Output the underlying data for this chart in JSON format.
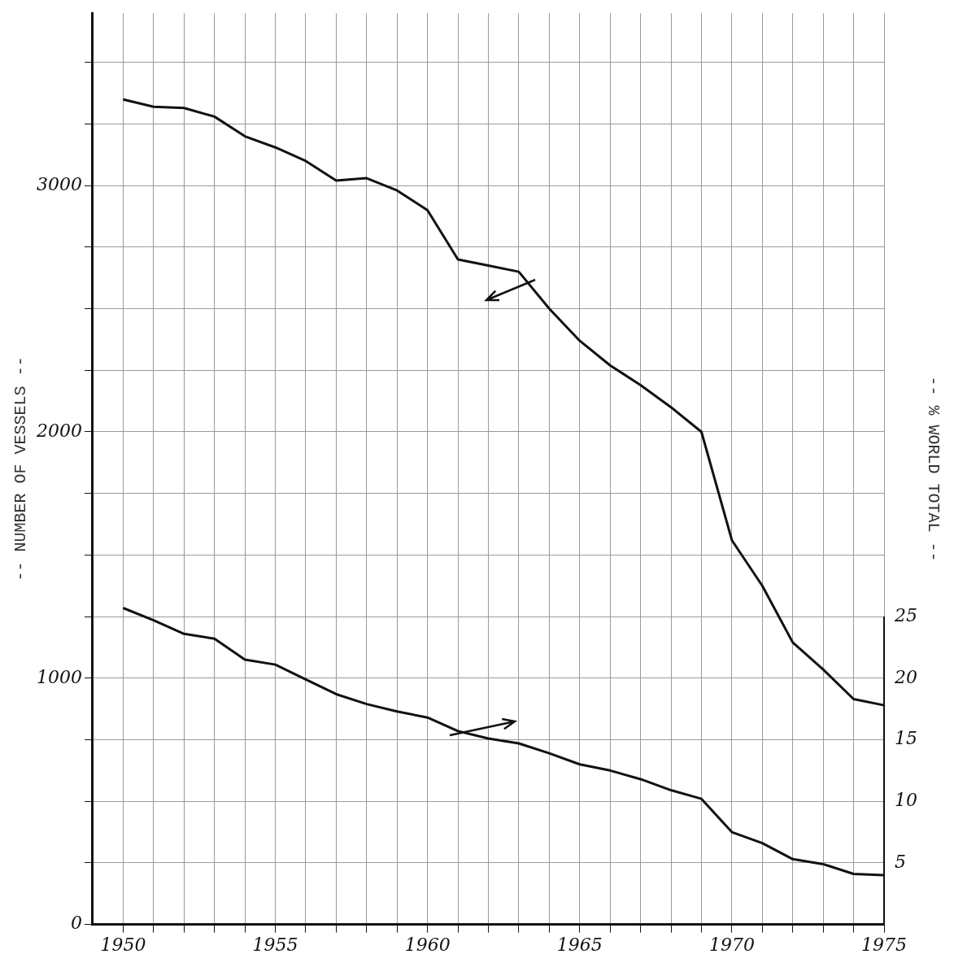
{
  "chart_data": {
    "type": "line",
    "ylabel": "-- NUMBER OF VESSELS --",
    "y2label": "-- % WORLD TOTAL --",
    "x": [
      1950,
      1951,
      1952,
      1953,
      1954,
      1955,
      1956,
      1957,
      1958,
      1959,
      1960,
      1961,
      1962,
      1963,
      1964,
      1965,
      1966,
      1967,
      1968,
      1969,
      1970,
      1971,
      1972,
      1973,
      1974,
      1975
    ],
    "series": [
      {
        "color": "#111111",
        "values": [
          3350,
          3320,
          3315,
          3280,
          3200,
          3155,
          3100,
          3020,
          3030,
          2980,
          2900,
          2700,
          2675,
          2650,
          2500,
          2370,
          2270,
          2190,
          2100,
          2000,
          1560,
          1375,
          1145,
          1035,
          915,
          890
        ]
      },
      {
        "color": "#111111",
        "axis": "y2",
        "values": [
          25.7,
          24.7,
          23.6,
          23.2,
          21.5,
          21.1,
          19.9,
          18.7,
          17.9,
          17.3,
          16.8,
          15.7,
          15.1,
          14.7,
          13.9,
          13.0,
          12.5,
          11.8,
          10.9,
          10.2,
          7.5,
          6.6,
          5.3,
          4.9,
          4.1,
          4.0
        ]
      }
    ],
    "xlim": [
      1949,
      1975
    ],
    "xticks": [
      1950,
      {
        "value": 1951,
        "label": null
      },
      {
        "value": 1952,
        "label": null
      },
      {
        "value": 1953,
        "label": null
      },
      {
        "value": 1954,
        "label": null
      },
      1955,
      {
        "value": 1956,
        "label": null
      },
      {
        "value": 1957,
        "label": null
      },
      {
        "value": 1958,
        "label": null
      },
      {
        "value": 1959,
        "label": null
      },
      1960,
      {
        "value": 1961,
        "label": null
      },
      {
        "value": 1962,
        "label": null
      },
      {
        "value": 1963,
        "label": null
      },
      {
        "value": 1964,
        "label": null
      },
      1965,
      {
        "value": 1966,
        "label": null
      },
      {
        "value": 1967,
        "label": null
      },
      {
        "value": 1968,
        "label": null
      },
      {
        "value": 1969,
        "label": null
      },
      1970,
      {
        "value": 1971,
        "label": null
      },
      {
        "value": 1972,
        "label": null
      },
      {
        "value": 1973,
        "label": null
      },
      {
        "value": 1974,
        "label": null
      },
      1975
    ],
    "ylim": [
      0,
      3700
    ],
    "yticks": [
      0,
      {
        "value": 250,
        "label": null
      },
      {
        "value": 500,
        "label": null
      },
      {
        "value": 750,
        "label": null
      },
      1000,
      {
        "value": 1250,
        "label": null
      },
      {
        "value": 1500,
        "label": null
      },
      {
        "value": 1750,
        "label": null
      },
      2000,
      {
        "value": 2250,
        "label": null
      },
      {
        "value": 2500,
        "label": null
      },
      {
        "value": 2750,
        "label": null
      },
      3000,
      {
        "value": 3250,
        "label": null
      },
      {
        "value": 3500,
        "label": null
      }
    ],
    "y2lim": [
      0,
      74
    ],
    "y2ticks": [
      5,
      10,
      15,
      20,
      25
    ],
    "grid": true,
    "legend": false,
    "marker": "none",
    "line_style": "solid"
  }
}
